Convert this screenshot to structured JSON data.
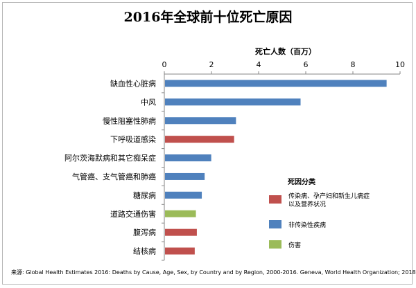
{
  "chart_data": {
    "type": "bar",
    "orientation": "horizontal",
    "title": "2016年全球前十位死亡原因",
    "xlabel": "死亡人数（百万）",
    "xlim": [
      0,
      10
    ],
    "xticks": [
      0,
      2,
      4,
      6,
      8,
      10
    ],
    "grid": false,
    "x_axis_position": "top",
    "categories": [
      "缺血性心脏病",
      "中风",
      "慢性阻塞性肺病",
      "下呼吸道感染",
      "阿尔茨海默病和其它痴呆症",
      "气管癌、支气管癌和肺癌",
      "糖尿病",
      "道路交通伤害",
      "腹泻病",
      "结核病"
    ],
    "values": [
      9.43,
      5.78,
      3.04,
      2.96,
      1.99,
      1.71,
      1.59,
      1.34,
      1.38,
      1.29
    ],
    "groups": [
      "ncd",
      "ncd",
      "ncd",
      "comm",
      "ncd",
      "ncd",
      "ncd",
      "inj",
      "comm",
      "comm"
    ],
    "legend": {
      "title": "死因分类",
      "placement": "bottom-right",
      "items": [
        {
          "key": "comm",
          "label": "传染病、孕产妇和新生儿病症以及营养状况",
          "color": "#c0504d"
        },
        {
          "key": "ncd",
          "label": "非传染性疾病",
          "color": "#4f81bd"
        },
        {
          "key": "inj",
          "label": "伤害",
          "color": "#9bbb59"
        }
      ]
    },
    "source": "来源:  Global Health Estimates 2016: Deaths by Cause, Age, Sex, by Country and by Region, 2000-2016. Geneva, World Health Organization; 2018."
  }
}
